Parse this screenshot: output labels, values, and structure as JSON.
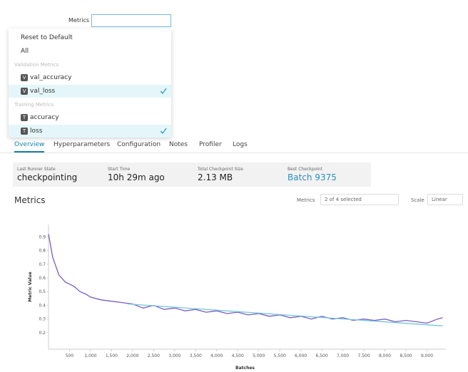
{
  "dropdown": {
    "label": "Metrics",
    "actions": [
      "Reset to Default",
      "All"
    ],
    "groups": [
      {
        "title": "Validation Metrics",
        "items": [
          {
            "badge": "V",
            "name": "val_accuracy",
            "checked": false
          },
          {
            "badge": "V",
            "name": "val_loss",
            "checked": true
          }
        ]
      },
      {
        "title": "Training Metrics",
        "items": [
          {
            "badge": "T",
            "name": "accuracy",
            "checked": false
          },
          {
            "badge": "T",
            "name": "loss",
            "checked": true
          }
        ]
      }
    ]
  },
  "tabs": {
    "items": [
      "Overview",
      "Hyperparameters",
      "Configuration",
      "Notes",
      "Profiler",
      "Logs"
    ],
    "active": 0
  },
  "cards": [
    {
      "label": "Last Runner State",
      "value": "checkpointing",
      "link": false
    },
    {
      "label": "Start Time",
      "value": "10h 29m ago",
      "link": false
    },
    {
      "label": "Total Checkpoint Size",
      "value": "2.13 MB",
      "link": false
    },
    {
      "label": "Best Checkpoint",
      "value": "Batch 9375",
      "link": true
    }
  ],
  "metrics_panel": {
    "title": "Metrics",
    "selector_label": "Metrics",
    "selector_value": "2 of 4 selected",
    "scale_label": "Scale",
    "scale_value": "Linear"
  },
  "chart_data": {
    "type": "line",
    "x_label": "Batches",
    "y_label": "Metric Value",
    "series": [
      {
        "name": "loss",
        "color": "#7a5cc0",
        "x": [
          0,
          100,
          250,
          400,
          600,
          750,
          900,
          1000,
          1250,
          1500,
          1750,
          2000,
          2250,
          2500,
          2750,
          3000,
          3250,
          3500,
          3750,
          4000,
          4250,
          4500,
          4750,
          5000,
          5250,
          5500,
          5750,
          6000,
          6250,
          6500,
          6750,
          7000,
          7250,
          7500,
          7750,
          8000,
          8250,
          8500,
          8750,
          9000,
          9250,
          9375
        ],
        "values": [
          0.92,
          0.75,
          0.62,
          0.57,
          0.54,
          0.5,
          0.48,
          0.46,
          0.44,
          0.43,
          0.42,
          0.41,
          0.38,
          0.4,
          0.37,
          0.38,
          0.36,
          0.37,
          0.35,
          0.36,
          0.34,
          0.35,
          0.33,
          0.34,
          0.32,
          0.33,
          0.31,
          0.32,
          0.3,
          0.32,
          0.3,
          0.31,
          0.29,
          0.3,
          0.29,
          0.3,
          0.28,
          0.29,
          0.28,
          0.27,
          0.3,
          0.31
        ]
      },
      {
        "name": "val_loss",
        "color": "#74c6dc",
        "x": [
          1875,
          9375
        ],
        "values": [
          0.41,
          0.25
        ]
      }
    ],
    "xlim": [
      0,
      9450
    ],
    "ylim": [
      0.08,
      0.99
    ],
    "xticks": [
      500,
      {
        "value": 1000,
        "label": "1,000"
      },
      {
        "value": 1500,
        "label": "1,500"
      },
      {
        "value": 2000,
        "label": "2,000"
      },
      {
        "value": 2500,
        "label": "2,500"
      },
      {
        "value": 3000,
        "label": "3,000"
      },
      {
        "value": 3500,
        "label": "3,500"
      },
      {
        "value": 4000,
        "label": "4,000"
      },
      {
        "value": 4500,
        "label": "4,500"
      },
      {
        "value": 5000,
        "label": "5,000"
      },
      {
        "value": 5500,
        "label": "5,500"
      },
      {
        "value": 6000,
        "label": "6,000"
      },
      {
        "value": 6500,
        "label": "6,500"
      },
      {
        "value": 7000,
        "label": "7,000"
      },
      {
        "value": 7500,
        "label": "7,500"
      },
      {
        "value": 8000,
        "label": "8,000"
      },
      {
        "value": 8500,
        "label": "8,500"
      },
      {
        "value": 9000,
        "label": "9,000"
      }
    ],
    "yticks": [
      0.2,
      0.3,
      0.4,
      0.5,
      0.6,
      0.7,
      0.8,
      0.9
    ]
  }
}
